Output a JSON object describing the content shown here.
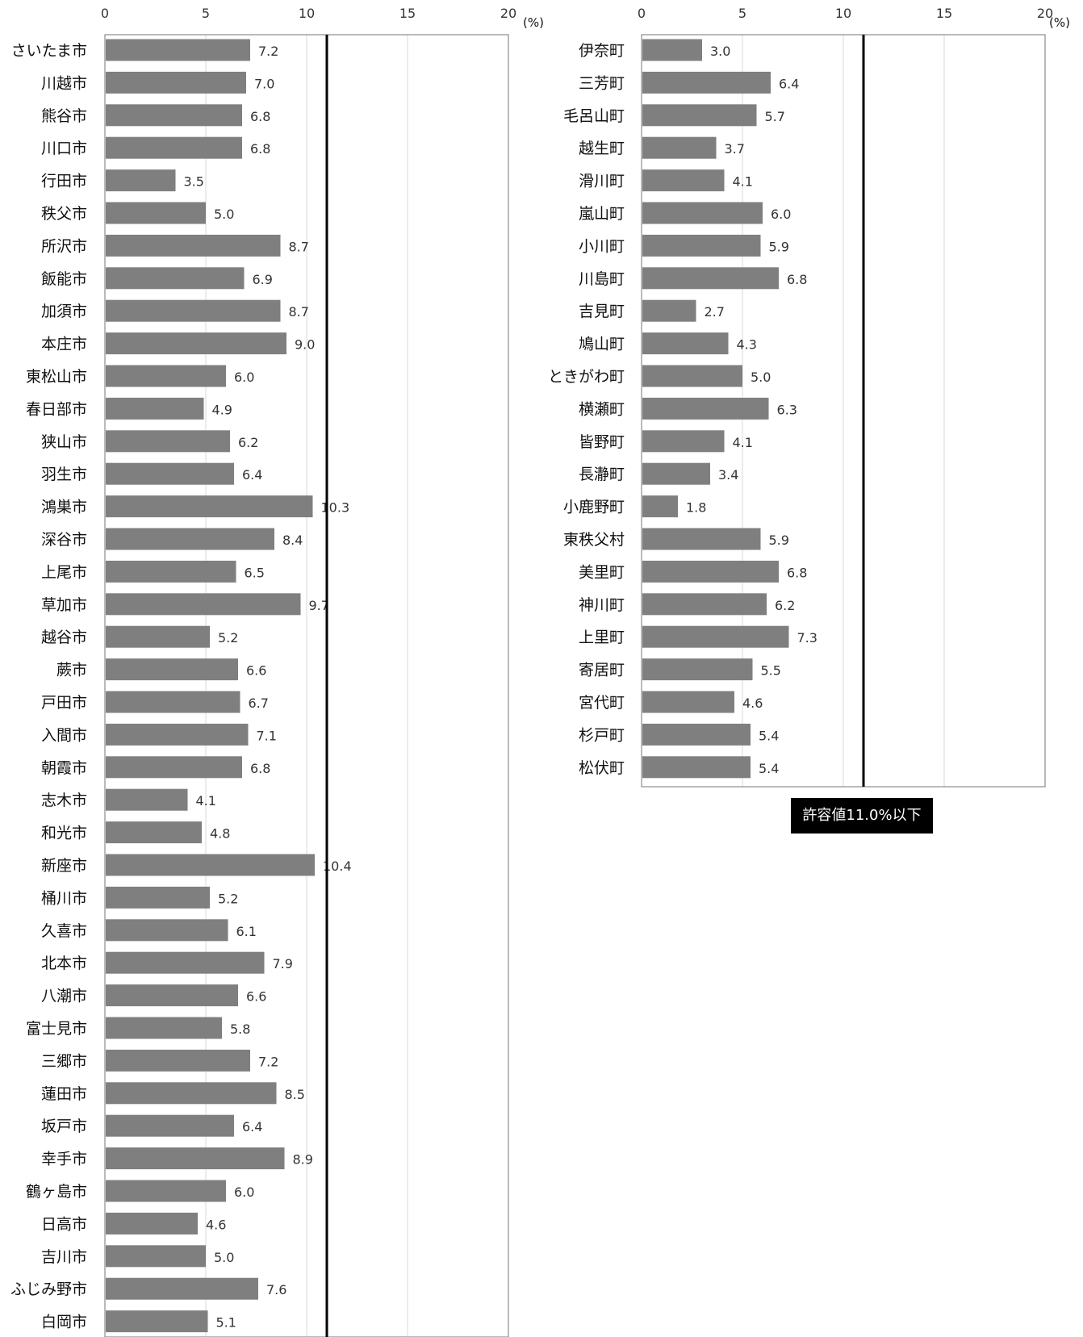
{
  "colors": {
    "bar": "#7f7f7f",
    "threshold_line": "#000000",
    "grid": "#d9d9d9",
    "frame": "#8c8c8c"
  },
  "threshold_label": "許容値11.0%以下",
  "chart_data": [
    {
      "type": "bar",
      "orientation": "horizontal",
      "xlim": [
        0,
        20
      ],
      "xticks": [
        "0",
        "5",
        "10",
        "15",
        "20"
      ],
      "unit": "(%)",
      "threshold": 11.0,
      "grid": true,
      "categories": [
        "さいたま市",
        "川越市",
        "熊谷市",
        "川口市",
        "行田市",
        "秩父市",
        "所沢市",
        "飯能市",
        "加須市",
        "本庄市",
        "東松山市",
        "春日部市",
        "狭山市",
        "羽生市",
        "鴻巣市",
        "深谷市",
        "上尾市",
        "草加市",
        "越谷市",
        "蕨市",
        "戸田市",
        "入間市",
        "朝霞市",
        "志木市",
        "和光市",
        "新座市",
        "桶川市",
        "久喜市",
        "北本市",
        "八潮市",
        "富士見市",
        "三郷市",
        "蓮田市",
        "坂戸市",
        "幸手市",
        "鶴ヶ島市",
        "日高市",
        "吉川市",
        "ふじみ野市",
        "白岡市"
      ],
      "values": [
        7.2,
        7.0,
        6.8,
        6.8,
        3.5,
        5.0,
        8.7,
        6.9,
        8.7,
        9.0,
        6.0,
        4.9,
        6.2,
        6.4,
        10.3,
        8.4,
        6.5,
        9.7,
        5.2,
        6.6,
        6.7,
        7.1,
        6.8,
        4.1,
        4.8,
        10.4,
        5.2,
        6.1,
        7.9,
        6.6,
        5.8,
        7.2,
        8.5,
        6.4,
        8.9,
        6.0,
        4.6,
        5.0,
        7.6,
        5.1
      ],
      "value_labels": [
        "7.2",
        "7.0",
        "6.8",
        "6.8",
        "3.5",
        "5.0",
        "8.7",
        "6.9",
        "8.7",
        "9.0",
        "6.0",
        "4.9",
        "6.2",
        "6.4",
        "10.3",
        "8.4",
        "6.5",
        "9.7",
        "5.2",
        "6.6",
        "6.7",
        "7.1",
        "6.8",
        "4.1",
        "4.8",
        "10.4",
        "5.2",
        "6.1",
        "7.9",
        "6.6",
        "5.8",
        "7.2",
        "8.5",
        "6.4",
        "8.9",
        "6.0",
        "4.6",
        "5.0",
        "7.6",
        "5.1"
      ]
    },
    {
      "type": "bar",
      "orientation": "horizontal",
      "xlim": [
        0,
        20
      ],
      "xticks": [
        "0",
        "5",
        "10",
        "15",
        "20"
      ],
      "unit": "(%)",
      "threshold": 11.0,
      "grid": true,
      "categories": [
        "伊奈町",
        "三芳町",
        "毛呂山町",
        "越生町",
        "滑川町",
        "嵐山町",
        "小川町",
        "川島町",
        "吉見町",
        "鳩山町",
        "ときがわ町",
        "横瀬町",
        "皆野町",
        "長瀞町",
        "小鹿野町",
        "東秩父村",
        "美里町",
        "神川町",
        "上里町",
        "寄居町",
        "宮代町",
        "杉戸町",
        "松伏町"
      ],
      "values": [
        3.0,
        6.4,
        5.7,
        3.7,
        4.1,
        6.0,
        5.9,
        6.8,
        2.7,
        4.3,
        5.0,
        6.3,
        4.1,
        3.4,
        1.8,
        5.9,
        6.8,
        6.2,
        7.3,
        5.5,
        4.6,
        5.4,
        5.4
      ],
      "value_labels": [
        "3.0",
        "6.4",
        "5.7",
        "3.7",
        "4.1",
        "6.0",
        "5.9",
        "6.8",
        "2.7",
        "4.3",
        "5.0",
        "6.3",
        "4.1",
        "3.4",
        "1.8",
        "5.9",
        "6.8",
        "6.2",
        "7.3",
        "5.5",
        "4.6",
        "5.4",
        "5.4"
      ]
    }
  ]
}
